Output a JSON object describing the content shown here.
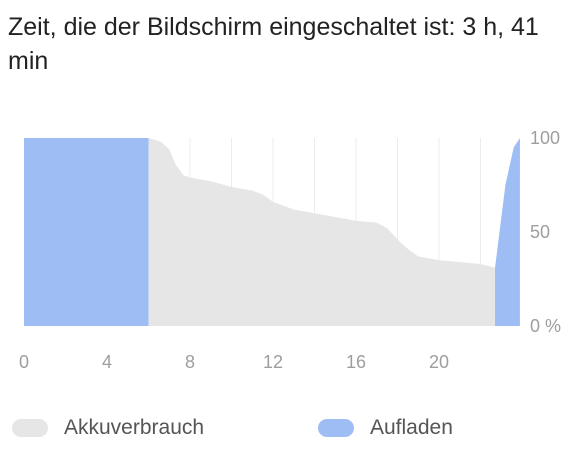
{
  "screen_time_title": "Zeit, die der Bildschirm eingeschaltet ist: 3 h, 41 min",
  "colors": {
    "usage": "#e6e6e6",
    "charging": "#9fbdf5",
    "grid": "#ececec",
    "axis_text": "#9e9e9e"
  },
  "chart_data": {
    "type": "area",
    "title": "",
    "xlabel": "",
    "ylabel": "",
    "xlim": [
      0,
      24
    ],
    "ylim": [
      0,
      100
    ],
    "x_ticks": [
      "0",
      "4",
      "8",
      "12",
      "16",
      "20"
    ],
    "x_tick_values": [
      0,
      4,
      8,
      12,
      16,
      20
    ],
    "y_ticks": [
      "100",
      "50",
      "0 %"
    ],
    "y_tick_values": [
      100,
      50,
      0
    ],
    "grid": true,
    "legend_position": "bottom",
    "series": [
      {
        "name": "Akkuverbrauch",
        "color_key": "usage",
        "x": [
          6.0,
          6.6,
          7.0,
          7.3,
          7.7,
          8.0,
          9.0,
          10.0,
          11.0,
          11.5,
          12.0,
          13.0,
          14.0,
          15.0,
          16.0,
          17.0,
          17.5,
          18.0,
          18.5,
          19.0,
          20.0,
          21.0,
          22.0,
          22.7
        ],
        "y": [
          100,
          98,
          94,
          86,
          80,
          79,
          77,
          74,
          72,
          70,
          66,
          62,
          60,
          58,
          56,
          55,
          52,
          46,
          41,
          37,
          35,
          34,
          33,
          31
        ]
      },
      {
        "name": "Aufladen",
        "color_key": "charging",
        "segments": [
          {
            "x": [
              0,
              6.0
            ],
            "y": [
              100,
              100
            ]
          },
          {
            "x": [
              22.7,
              23.2,
              23.6,
              23.9
            ],
            "y": [
              31,
              75,
              95,
              100
            ]
          }
        ]
      }
    ]
  },
  "legend": [
    {
      "label": "Akkuverbrauch",
      "color_key": "usage"
    },
    {
      "label": "Aufladen",
      "color_key": "charging"
    }
  ]
}
